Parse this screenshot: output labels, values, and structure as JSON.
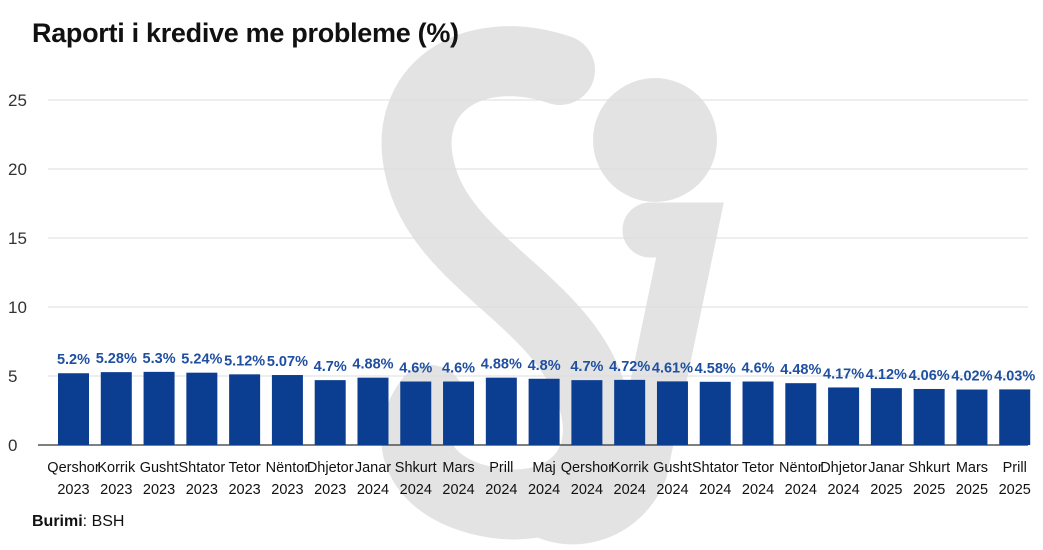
{
  "title": "Raporti i kredive me probleme (%)",
  "source": {
    "label": "Burimi",
    "value": ": BSH"
  },
  "colors": {
    "bar": "#0b3d91",
    "data_label": "#1f4fa0",
    "grid": "#dddddd",
    "axis": "#333333"
  },
  "chart_data": {
    "type": "bar",
    "title": "Raporti i kredive me probleme (%)",
    "xlabel": "",
    "ylabel": "",
    "ylim": [
      0,
      25
    ],
    "yticks": [
      0,
      5,
      10,
      15,
      20,
      25
    ],
    "grid": true,
    "categories": [
      [
        "Qershor",
        "2023"
      ],
      [
        "Korrik",
        "2023"
      ],
      [
        "Gusht",
        "2023"
      ],
      [
        "Shtator",
        "2023"
      ],
      [
        "Tetor",
        "2023"
      ],
      [
        "Nëntor",
        "2023"
      ],
      [
        "Dhjetor",
        "2023"
      ],
      [
        "Janar",
        "2024"
      ],
      [
        "Shkurt",
        "2024"
      ],
      [
        "Mars",
        "2024"
      ],
      [
        "Prill",
        "2024"
      ],
      [
        "Maj",
        "2024"
      ],
      [
        "Qershor",
        "2024"
      ],
      [
        "Korrik",
        "2024"
      ],
      [
        "Gusht",
        "2024"
      ],
      [
        "Shtator",
        "2024"
      ],
      [
        "Tetor",
        "2024"
      ],
      [
        "Nëntor",
        "2024"
      ],
      [
        "Dhjetor",
        "2024"
      ],
      [
        "Janar",
        "2025"
      ],
      [
        "Shkurt",
        "2025"
      ],
      [
        "Mars",
        "2025"
      ],
      [
        "Prill",
        "2025"
      ]
    ],
    "values": [
      5.2,
      5.28,
      5.3,
      5.24,
      5.12,
      5.07,
      4.7,
      4.88,
      4.6,
      4.6,
      4.88,
      4.8,
      4.7,
      4.72,
      4.61,
      4.58,
      4.6,
      4.48,
      4.17,
      4.12,
      4.06,
      4.02,
      4.03
    ],
    "labels": [
      "5.2%",
      "5.28%",
      "5.3%",
      "5.24%",
      "5.12%",
      "5.07%",
      "4.7%",
      "4.88%",
      "4.6%",
      "4.6%",
      "4.88%",
      "4.8%",
      "4.7%",
      "4.72%",
      "4.61%",
      "4.58%",
      "4.6%",
      "4.48%",
      "4.17%",
      "4.12%",
      "4.06%",
      "4.02%",
      "4.03%"
    ]
  }
}
